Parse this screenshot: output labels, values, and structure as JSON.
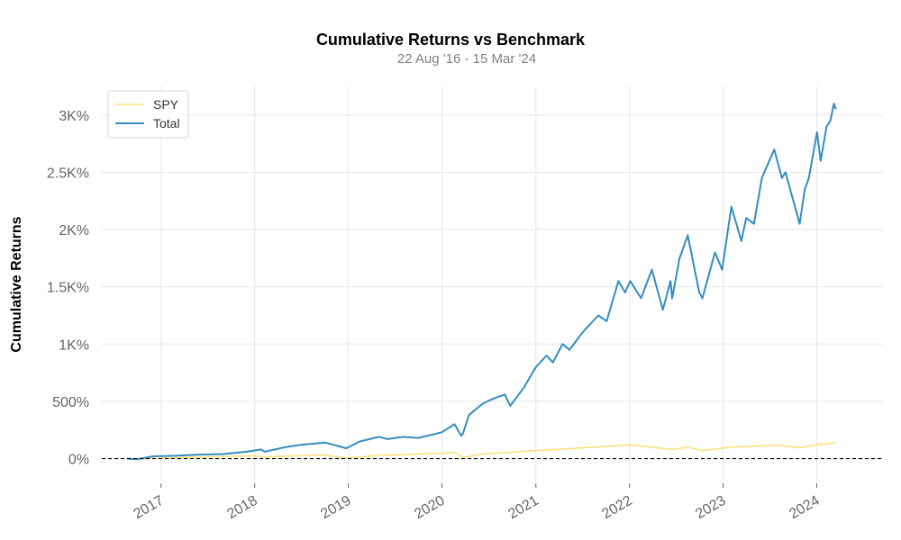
{
  "chart_data": {
    "type": "line",
    "title": "Cumulative Returns vs Benchmark",
    "subtitle": "22 Aug '16 - 15 Mar '24",
    "xlabel": "",
    "ylabel": "Cumulative Returns",
    "xlim": [
      "2016-05-15",
      "2024-09-15"
    ],
    "ylim": [
      -200,
      3250
    ],
    "x_ticks": [
      {
        "date": "2017-01-01",
        "label": "2017"
      },
      {
        "date": "2018-01-01",
        "label": "2018"
      },
      {
        "date": "2019-01-01",
        "label": "2019"
      },
      {
        "date": "2020-01-01",
        "label": "2020"
      },
      {
        "date": "2021-01-01",
        "label": "2021"
      },
      {
        "date": "2022-01-01",
        "label": "2022"
      },
      {
        "date": "2023-01-01",
        "label": "2023"
      },
      {
        "date": "2024-01-01",
        "label": "2024"
      }
    ],
    "y_ticks": [
      {
        "value": 0,
        "label": "0%"
      },
      {
        "value": 500,
        "label": "500%"
      },
      {
        "value": 1000,
        "label": "1K%"
      },
      {
        "value": 1500,
        "label": "1.5K%"
      },
      {
        "value": 2000,
        "label": "2K%"
      },
      {
        "value": 2500,
        "label": "2.5K%"
      },
      {
        "value": 3000,
        "label": "3K%"
      }
    ],
    "baseline": 0,
    "grid": true,
    "legend": "top-left",
    "series": [
      {
        "name": "SPY",
        "color": "#fedd78",
        "points": [
          [
            "2016-08-22",
            0
          ],
          [
            "2016-11-01",
            -2
          ],
          [
            "2017-01-01",
            5
          ],
          [
            "2017-06-01",
            12
          ],
          [
            "2018-01-01",
            25
          ],
          [
            "2018-02-09",
            15
          ],
          [
            "2018-09-20",
            32
          ],
          [
            "2018-12-24",
            5
          ],
          [
            "2019-04-30",
            28
          ],
          [
            "2019-12-31",
            45
          ],
          [
            "2020-02-19",
            55
          ],
          [
            "2020-03-23",
            10
          ],
          [
            "2020-06-08",
            40
          ],
          [
            "2020-12-31",
            70
          ],
          [
            "2021-06-01",
            90
          ],
          [
            "2021-12-31",
            120
          ],
          [
            "2022-06-16",
            80
          ],
          [
            "2022-08-16",
            100
          ],
          [
            "2022-10-12",
            70
          ],
          [
            "2023-02-01",
            100
          ],
          [
            "2023-07-31",
            115
          ],
          [
            "2023-10-27",
            95
          ],
          [
            "2024-01-02",
            120
          ],
          [
            "2024-03-15",
            140
          ]
        ]
      },
      {
        "name": "Total",
        "color": "#348dc1",
        "points": [
          [
            "2016-08-22",
            0
          ],
          [
            "2016-10-01",
            -5
          ],
          [
            "2016-12-01",
            20
          ],
          [
            "2017-03-01",
            25
          ],
          [
            "2017-06-01",
            35
          ],
          [
            "2017-09-01",
            40
          ],
          [
            "2017-12-01",
            60
          ],
          [
            "2018-01-26",
            80
          ],
          [
            "2018-02-09",
            60
          ],
          [
            "2018-05-01",
            100
          ],
          [
            "2018-07-01",
            120
          ],
          [
            "2018-10-03",
            140
          ],
          [
            "2018-12-24",
            90
          ],
          [
            "2019-02-15",
            150
          ],
          [
            "2019-04-30",
            190
          ],
          [
            "2019-06-03",
            170
          ],
          [
            "2019-08-01",
            190
          ],
          [
            "2019-10-01",
            180
          ],
          [
            "2019-12-31",
            230
          ],
          [
            "2020-02-19",
            300
          ],
          [
            "2020-03-16",
            200
          ],
          [
            "2020-03-23",
            220
          ],
          [
            "2020-04-15",
            380
          ],
          [
            "2020-06-08",
            480
          ],
          [
            "2020-07-15",
            520
          ],
          [
            "2020-09-02",
            560
          ],
          [
            "2020-09-23",
            460
          ],
          [
            "2020-11-15",
            620
          ],
          [
            "2021-01-01",
            800
          ],
          [
            "2021-02-12",
            900
          ],
          [
            "2021-03-08",
            840
          ],
          [
            "2021-04-15",
            1000
          ],
          [
            "2021-05-12",
            950
          ],
          [
            "2021-07-01",
            1100
          ],
          [
            "2021-09-01",
            1250
          ],
          [
            "2021-10-04",
            1200
          ],
          [
            "2021-11-19",
            1550
          ],
          [
            "2021-12-15",
            1450
          ],
          [
            "2022-01-04",
            1550
          ],
          [
            "2022-02-15",
            1400
          ],
          [
            "2022-03-29",
            1650
          ],
          [
            "2022-05-11",
            1300
          ],
          [
            "2022-06-10",
            1550
          ],
          [
            "2022-06-16",
            1400
          ],
          [
            "2022-07-15",
            1750
          ],
          [
            "2022-08-16",
            1950
          ],
          [
            "2022-09-30",
            1450
          ],
          [
            "2022-10-12",
            1400
          ],
          [
            "2022-11-30",
            1800
          ],
          [
            "2022-12-28",
            1650
          ],
          [
            "2023-02-02",
            2200
          ],
          [
            "2023-03-13",
            1900
          ],
          [
            "2023-04-01",
            2100
          ],
          [
            "2023-05-01",
            2050
          ],
          [
            "2023-06-01",
            2450
          ],
          [
            "2023-07-19",
            2700
          ],
          [
            "2023-08-18",
            2450
          ],
          [
            "2023-09-01",
            2500
          ],
          [
            "2023-10-26",
            2050
          ],
          [
            "2023-11-15",
            2350
          ],
          [
            "2023-12-01",
            2450
          ],
          [
            "2024-01-02",
            2850
          ],
          [
            "2024-01-16",
            2600
          ],
          [
            "2024-02-08",
            2900
          ],
          [
            "2024-02-23",
            2950
          ],
          [
            "2024-03-08",
            3100
          ],
          [
            "2024-03-15",
            3050
          ]
        ]
      }
    ]
  }
}
